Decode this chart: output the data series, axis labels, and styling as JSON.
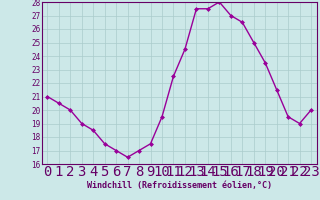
{
  "x": [
    0,
    1,
    2,
    3,
    4,
    5,
    6,
    7,
    8,
    9,
    10,
    11,
    12,
    13,
    14,
    15,
    16,
    17,
    18,
    19,
    20,
    21,
    22,
    23
  ],
  "y": [
    21.0,
    20.5,
    20.0,
    19.0,
    18.5,
    17.5,
    17.0,
    16.5,
    17.0,
    17.5,
    19.5,
    22.5,
    24.5,
    27.5,
    27.5,
    28.0,
    27.0,
    26.5,
    25.0,
    23.5,
    21.5,
    19.5,
    19.0,
    20.0
  ],
  "line_color": "#990099",
  "marker": "D",
  "marker_size": 2.0,
  "bg_color": "#cce8e8",
  "grid_color": "#aacccc",
  "axis_label_color": "#660066",
  "tick_color": "#660066",
  "xlabel": "Windchill (Refroidissement éolien,°C)",
  "ylabel": "",
  "title": "",
  "xlim": [
    -0.5,
    23.5
  ],
  "ylim": [
    16,
    28
  ],
  "yticks": [
    16,
    17,
    18,
    19,
    20,
    21,
    22,
    23,
    24,
    25,
    26,
    27,
    28
  ],
  "xticks": [
    0,
    1,
    2,
    3,
    4,
    5,
    6,
    7,
    8,
    9,
    10,
    11,
    12,
    13,
    14,
    15,
    16,
    17,
    18,
    19,
    20,
    21,
    22,
    23
  ],
  "xlabel_fontsize": 6.0,
  "tick_fontsize": 5.5,
  "linewidth": 1.0
}
